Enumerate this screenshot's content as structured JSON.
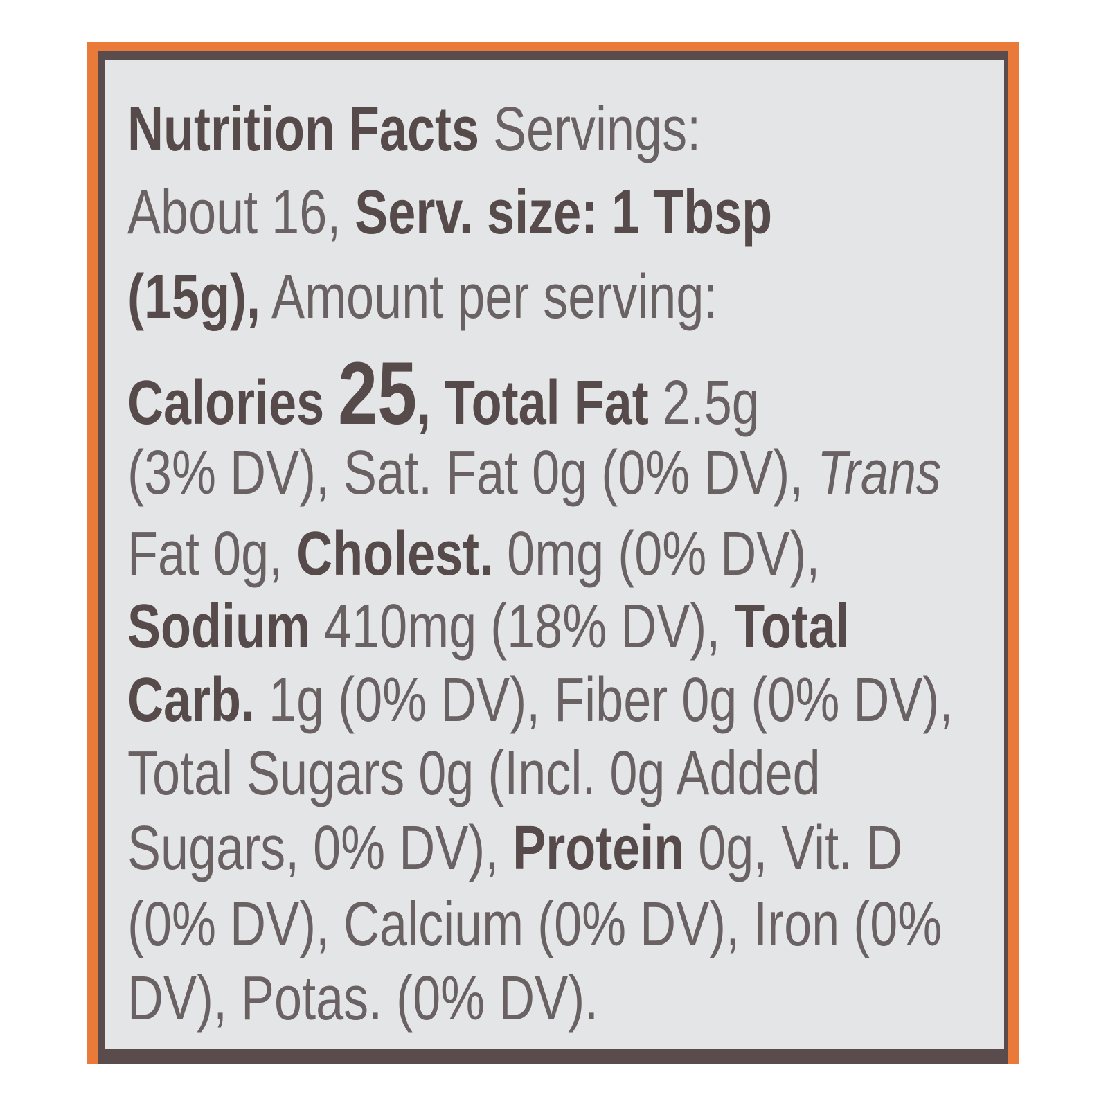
{
  "label": {
    "colors": {
      "border_orange": "#ea7a3a",
      "frame_brown": "#5a4c4c",
      "panel": "#e3e5e7",
      "text": "#6a6163"
    },
    "lines": [
      [
        {
          "t": "Nutrition Facts",
          "s": "b"
        },
        {
          "t": " Servings:",
          "s": ""
        }
      ],
      [
        {
          "t": "About 16, ",
          "s": ""
        },
        {
          "t": "Serv. size: 1 Tbsp",
          "s": "b"
        }
      ],
      [
        {
          "t": "(15g),",
          "s": "b"
        },
        {
          "t": " Amount per serving:",
          "s": ""
        }
      ],
      [
        {
          "t": "Calories ",
          "s": "b"
        },
        {
          "t": "25",
          "s": "big"
        },
        {
          "t": ", Total Fat",
          "s": "b"
        },
        {
          "t": " 2.5g",
          "s": ""
        }
      ],
      [
        {
          "t": "(3% DV), Sat. Fat 0g (0% DV), ",
          "s": ""
        },
        {
          "t": "Trans",
          "s": "i"
        }
      ],
      [
        {
          "t": "Fat 0g, ",
          "s": ""
        },
        {
          "t": "Cholest.",
          "s": "b"
        },
        {
          "t": " 0mg (0% DV),",
          "s": ""
        }
      ],
      [
        {
          "t": "Sodium",
          "s": "b"
        },
        {
          "t": " 410mg (18% DV), ",
          "s": ""
        },
        {
          "t": "Total",
          "s": "b"
        }
      ],
      [
        {
          "t": "Carb.",
          "s": "b"
        },
        {
          "t": " 1g (0% DV), Fiber 0g (0% DV),",
          "s": ""
        }
      ],
      [
        {
          "t": "Total Sugars 0g (Incl. 0g Added",
          "s": ""
        }
      ],
      [
        {
          "t": "Sugars, 0% DV), ",
          "s": ""
        },
        {
          "t": "Protein",
          "s": "b"
        },
        {
          "t": " 0g, Vit. D",
          "s": ""
        }
      ],
      [
        {
          "t": "(0% DV), Calcium (0% DV), Iron (0%",
          "s": ""
        }
      ],
      [
        {
          "t": "DV), Potas. (0% DV).",
          "s": ""
        }
      ]
    ]
  }
}
